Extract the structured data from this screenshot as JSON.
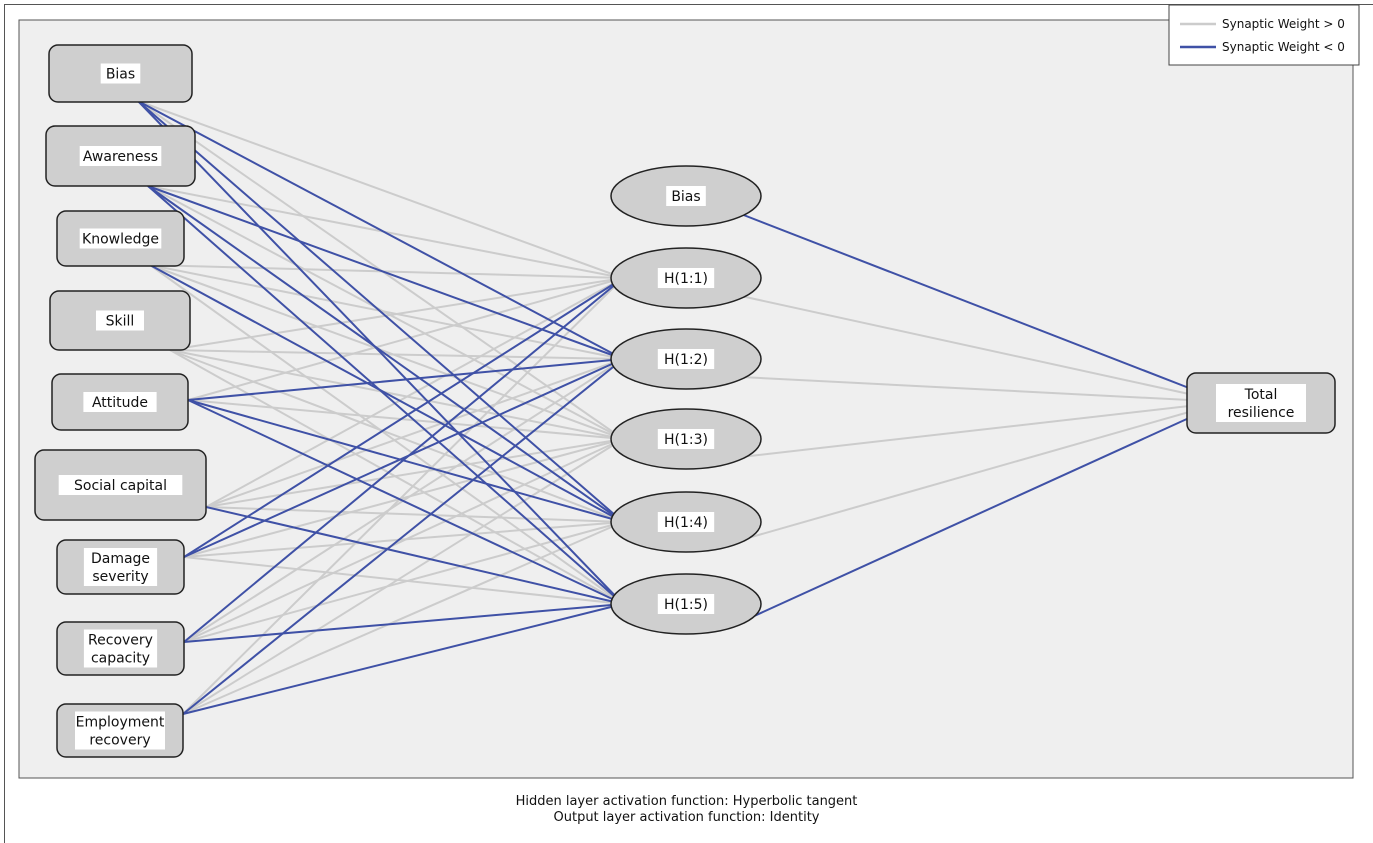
{
  "network": {
    "inputs": [
      {
        "id": "in-bias",
        "label": [
          "Bias"
        ]
      },
      {
        "id": "in-awareness",
        "label": [
          "Awareness"
        ]
      },
      {
        "id": "in-knowledge",
        "label": [
          "Knowledge"
        ]
      },
      {
        "id": "in-skill",
        "label": [
          "Skill"
        ]
      },
      {
        "id": "in-attitude",
        "label": [
          "Attitude"
        ]
      },
      {
        "id": "in-social-capital",
        "label": [
          "Social capital"
        ]
      },
      {
        "id": "in-damage-severity",
        "label": [
          "Damage",
          "severity"
        ]
      },
      {
        "id": "in-recovery-capacity",
        "label": [
          "Recovery",
          "capacity"
        ]
      },
      {
        "id": "in-employment-recovery",
        "label": [
          "Employment",
          "recovery"
        ]
      }
    ],
    "hidden": [
      {
        "id": "hid-bias",
        "label": "Bias"
      },
      {
        "id": "hid-h11",
        "label": "H(1:1)"
      },
      {
        "id": "hid-h12",
        "label": "H(1:2)"
      },
      {
        "id": "hid-h13",
        "label": "H(1:3)"
      },
      {
        "id": "hid-h14",
        "label": "H(1:4)"
      },
      {
        "id": "hid-h15",
        "label": "H(1:5)"
      }
    ],
    "output": {
      "id": "out-total-resilience",
      "label": [
        "Total",
        "resilience"
      ]
    },
    "input_to_hidden_sign": [
      [
        "+",
        "-",
        "+",
        "-",
        "-"
      ],
      [
        "+",
        "-",
        "+",
        "-",
        "-"
      ],
      [
        "+",
        "+",
        "+",
        "-",
        "+"
      ],
      [
        "+",
        "+",
        "+",
        "+",
        "+"
      ],
      [
        "+",
        "-",
        "+",
        "-",
        "-"
      ],
      [
        "+",
        "+",
        "+",
        "+",
        "-"
      ],
      [
        "-",
        "-",
        "+",
        "+",
        "+"
      ],
      [
        "-",
        "+",
        "+",
        "+",
        "-"
      ],
      [
        "+",
        "-",
        "+",
        "+",
        "-"
      ]
    ],
    "hidden_to_output_sign": [
      "-",
      "+",
      "+",
      "+",
      "+",
      "-"
    ]
  },
  "legend": {
    "positive_label": "Synaptic Weight > 0",
    "negative_label": "Synaptic Weight < 0",
    "positive_color": "#cccccc",
    "negative_color": "#3f51a6"
  },
  "footer": {
    "hidden_activation": "Hidden layer activation function: Hyperbolic tangent",
    "output_activation": "Output layer activation function: Identity"
  }
}
